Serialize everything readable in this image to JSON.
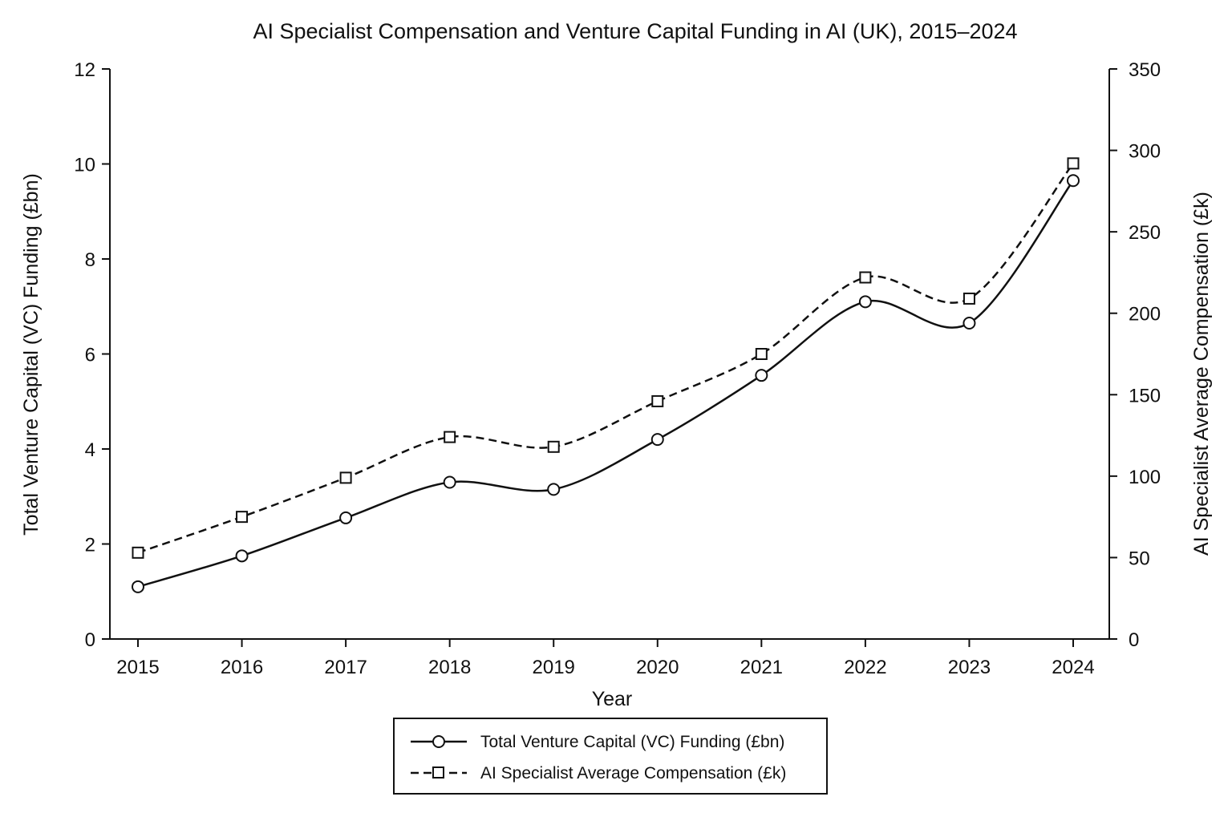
{
  "chart_data": {
    "type": "line",
    "title": "AI Specialist Compensation and Venture Capital Funding in AI (UK), 2015–2024",
    "xlabel": "Year",
    "ylabel_left": "Total Venture Capital (VC) Funding (£bn)",
    "ylabel_right": "AI Specialist Average Compensation (£k)",
    "x": [
      "2015",
      "2016",
      "2017",
      "2018",
      "2019",
      "2020",
      "2021",
      "2022",
      "2023",
      "2024"
    ],
    "ylim_left": [
      0,
      12
    ],
    "yticks_left": [
      0,
      2,
      4,
      6,
      8,
      10,
      12
    ],
    "ylim_right": [
      0,
      350
    ],
    "yticks_right": [
      0,
      50,
      100,
      150,
      200,
      250,
      300,
      350
    ],
    "grid": false,
    "legend_position": "bottom-center",
    "series": [
      {
        "name": "Total Venture Capital (VC) Funding (£bn)",
        "axis": "left",
        "line_style": "solid",
        "marker": "circle",
        "values": [
          1.1,
          1.75,
          2.55,
          3.3,
          3.15,
          4.2,
          5.55,
          7.1,
          6.65,
          9.65
        ]
      },
      {
        "name": "AI Specialist Average Compensation (£k)",
        "axis": "right",
        "line_style": "dashed",
        "marker": "square",
        "values": [
          53,
          75,
          99,
          124,
          118,
          146,
          175,
          222,
          209,
          292
        ]
      }
    ]
  }
}
